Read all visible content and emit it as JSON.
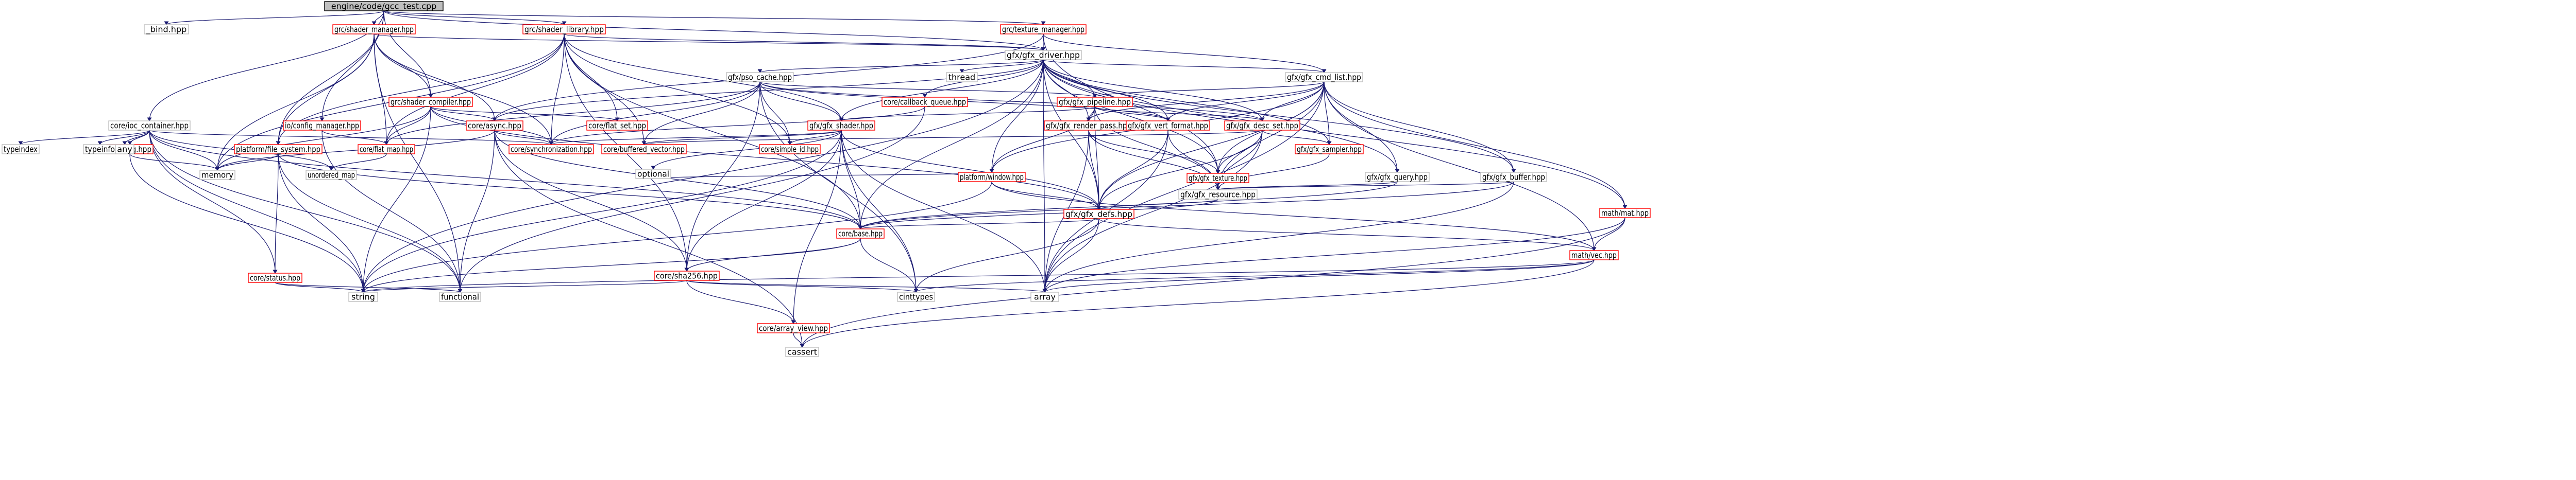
{
  "graph": {
    "nodes": [
      {
        "id": "root",
        "label": "engine/code/gcc_test.cpp",
        "kind": "root"
      },
      {
        "id": "bind",
        "label": "_bind.hpp",
        "kind": "leaf"
      },
      {
        "id": "ioc",
        "label": "core/ioc_container.hpp",
        "kind": "leaf"
      },
      {
        "id": "shader_mgr",
        "label": "grc/shader_manager.hpp",
        "kind": "ref"
      },
      {
        "id": "shader_lib",
        "label": "grc/shader_library.hpp",
        "kind": "ref"
      },
      {
        "id": "texture_mgr",
        "label": "grc/texture_manager.hpp",
        "kind": "ref"
      },
      {
        "id": "gfx_driver",
        "label": "gfx/gfx_driver.hpp",
        "kind": "leaf"
      },
      {
        "id": "pso_cache",
        "label": "gfx/pso_cache.hpp",
        "kind": "leaf"
      },
      {
        "id": "thread",
        "label": "thread",
        "kind": "leaf"
      },
      {
        "id": "cmd_list",
        "label": "gfx/gfx_cmd_list.hpp",
        "kind": "leaf"
      },
      {
        "id": "shader_compiler",
        "label": "grc/shader_compiler.hpp",
        "kind": "ref"
      },
      {
        "id": "callback_queue",
        "label": "core/callback_queue.hpp",
        "kind": "ref"
      },
      {
        "id": "gfx_pipeline",
        "label": "gfx/gfx_pipeline.hpp",
        "kind": "ref"
      },
      {
        "id": "config_mgr",
        "label": "io/config_manager.hpp",
        "kind": "ref"
      },
      {
        "id": "flat_set",
        "label": "core/flat_set.hpp",
        "kind": "ref"
      },
      {
        "id": "gfx_shader",
        "label": "gfx/gfx_shader.hpp",
        "kind": "ref"
      },
      {
        "id": "render_pass",
        "label": "gfx/gfx_render_pass.hpp",
        "kind": "ref"
      },
      {
        "id": "vert_format",
        "label": "gfx/gfx_vert_format.hpp",
        "kind": "ref"
      },
      {
        "id": "desc_set",
        "label": "gfx/gfx_desc_set.hpp",
        "kind": "ref"
      },
      {
        "id": "typeindex",
        "label": "typeindex",
        "kind": "leaf"
      },
      {
        "id": "log",
        "label": "core/log.hpp",
        "kind": "ref"
      },
      {
        "id": "typeinfo",
        "label": "typeinfo",
        "kind": "leaf"
      },
      {
        "id": "any",
        "label": "any",
        "kind": "leaf"
      },
      {
        "id": "fs",
        "label": "platform/file_system.hpp",
        "kind": "ref"
      },
      {
        "id": "async",
        "label": "core/async.hpp",
        "kind": "ref"
      },
      {
        "id": "flat_map",
        "label": "core/flat_map.hpp",
        "kind": "ref"
      },
      {
        "id": "sync",
        "label": "core/synchronization.hpp",
        "kind": "ref"
      },
      {
        "id": "buffered_vector",
        "label": "core/buffered_vector.hpp",
        "kind": "ref"
      },
      {
        "id": "simple_id",
        "label": "core/simple_id.hpp",
        "kind": "ref"
      },
      {
        "id": "window",
        "label": "platform/window.hpp",
        "kind": "ref"
      },
      {
        "id": "gfx_texture",
        "label": "gfx/gfx_texture.hpp",
        "kind": "ref"
      },
      {
        "id": "gfx_sampler",
        "label": "gfx/gfx_sampler.hpp",
        "kind": "ref"
      },
      {
        "id": "gfx_query",
        "label": "gfx/gfx_query.hpp",
        "kind": "leaf"
      },
      {
        "id": "gfx_buffer",
        "label": "gfx/gfx_buffer.hpp",
        "kind": "leaf"
      },
      {
        "id": "memory",
        "label": "memory",
        "kind": "leaf"
      },
      {
        "id": "unordered_map",
        "label": "unordered_map",
        "kind": "leaf"
      },
      {
        "id": "optional",
        "label": "optional",
        "kind": "leaf"
      },
      {
        "id": "gfx_resource",
        "label": "gfx/gfx_resource.hpp",
        "kind": "leaf"
      },
      {
        "id": "gfx_defs",
        "label": "gfx/gfx_defs.hpp",
        "kind": "ref"
      },
      {
        "id": "mat",
        "label": "math/mat.hpp",
        "kind": "ref"
      },
      {
        "id": "base",
        "label": "core/base.hpp",
        "kind": "ref"
      },
      {
        "id": "vec",
        "label": "math/vec.hpp",
        "kind": "ref"
      },
      {
        "id": "status",
        "label": "core/status.hpp",
        "kind": "ref"
      },
      {
        "id": "sha256",
        "label": "core/sha256.hpp",
        "kind": "ref"
      },
      {
        "id": "string",
        "label": "string",
        "kind": "leaf"
      },
      {
        "id": "functional",
        "label": "functional",
        "kind": "leaf"
      },
      {
        "id": "cinttypes",
        "label": "cinttypes",
        "kind": "leaf"
      },
      {
        "id": "array",
        "label": "array",
        "kind": "leaf"
      },
      {
        "id": "array_view",
        "label": "core/array_view.hpp",
        "kind": "ref"
      },
      {
        "id": "cassert",
        "label": "cassert",
        "kind": "leaf"
      }
    ],
    "colors": {
      "edge": "#191970",
      "root_fill": "#bfbfbf",
      "ref_border": "#ff0000",
      "leaf_border": "#bfbfbf"
    }
  }
}
